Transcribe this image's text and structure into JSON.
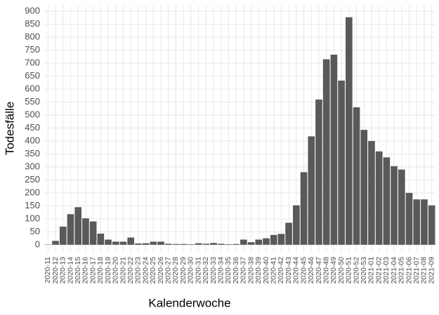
{
  "chart_data": {
    "type": "bar",
    "x_label": "Kalenderwoche",
    "y_label": "Todesfälle",
    "categories": [
      "2020-11",
      "2020-12",
      "2020-13",
      "2020-14",
      "2020-15",
      "2020-16",
      "2020-17",
      "2020-18",
      "2020-19",
      "2020-20",
      "2020-21",
      "2020-22",
      "2020-23",
      "2020-24",
      "2020-25",
      "2020-26",
      "2020-27",
      "2020-28",
      "2020-29",
      "2020-30",
      "2020-31",
      "2020-32",
      "2020-33",
      "2020-34",
      "2020-35",
      "2020-36",
      "2020-37",
      "2020-38",
      "2020-39",
      "2020-40",
      "2020-41",
      "2020-42",
      "2020-43",
      "2020-44",
      "2020-45",
      "2020-46",
      "2020-47",
      "2020-48",
      "2020-49",
      "2020-50",
      "2020-51",
      "2020-52",
      "2020-53",
      "2021-01",
      "2021-02",
      "2021-03",
      "2021-04",
      "2021-05",
      "2021-06",
      "2021-07",
      "2021-08",
      "2021-09"
    ],
    "values": [
      1,
      15,
      70,
      118,
      145,
      102,
      90,
      43,
      20,
      12,
      12,
      28,
      5,
      6,
      12,
      12,
      4,
      3,
      3,
      2,
      6,
      4,
      7,
      4,
      2,
      3,
      20,
      10,
      20,
      25,
      38,
      42,
      85,
      152,
      280,
      418,
      560,
      715,
      733,
      633,
      877,
      530,
      443,
      400,
      360,
      337,
      303,
      290,
      200,
      175,
      175,
      152
    ],
    "color": "#595959",
    "ylim": [
      -30,
      922
    ],
    "yticks": [
      0,
      50,
      100,
      150,
      200,
      250,
      300,
      350,
      400,
      450,
      500,
      550,
      600,
      650,
      700,
      750,
      800,
      850,
      900
    ],
    "grid": true
  }
}
